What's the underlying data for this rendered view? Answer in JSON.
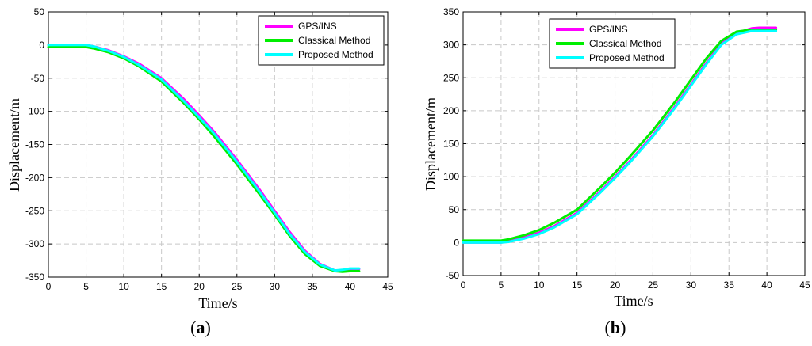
{
  "chart_data": [
    {
      "type": "line",
      "panel_label": "(a)",
      "panel_label_parts": [
        "(",
        "a",
        ")"
      ],
      "xlabel": "Time/s",
      "ylabel": "Displacement/m",
      "xlim": [
        0,
        45
      ],
      "ylim": [
        -350,
        50
      ],
      "xticks": [
        0,
        5,
        10,
        15,
        20,
        25,
        30,
        35,
        40,
        45
      ],
      "yticks": [
        -350,
        -300,
        -250,
        -200,
        -150,
        -100,
        -50,
        0,
        50
      ],
      "grid": true,
      "legend_position": "top-right",
      "series": [
        {
          "name": "GPS/INS",
          "color": "#ff00ff",
          "x": [
            0,
            4,
            5,
            6,
            8,
            10,
            12,
            15,
            18,
            20,
            22,
            25,
            28,
            30,
            32,
            34,
            36,
            38,
            39,
            40,
            41.2
          ],
          "y": [
            0,
            0,
            0,
            -2,
            -8,
            -17,
            -28,
            -50,
            -82,
            -106,
            -131,
            -173,
            -218,
            -250,
            -282,
            -310,
            -330,
            -340,
            -340,
            -338,
            -338
          ]
        },
        {
          "name": "Classical Method",
          "color": "#00ee00",
          "x": [
            0,
            4,
            5,
            6,
            8,
            10,
            12,
            15,
            18,
            20,
            22,
            25,
            28,
            30,
            32,
            34,
            36,
            38,
            39,
            40,
            41.2
          ],
          "y": [
            -3,
            -3,
            -3,
            -5,
            -11,
            -20,
            -32,
            -55,
            -88,
            -112,
            -138,
            -180,
            -225,
            -256,
            -288,
            -315,
            -333,
            -341,
            -342,
            -341,
            -341
          ]
        },
        {
          "name": "Proposed Method",
          "color": "#00ffff",
          "x": [
            0,
            4,
            5,
            6,
            8,
            10,
            12,
            15,
            18,
            20,
            22,
            25,
            28,
            30,
            32,
            34,
            36,
            38,
            39,
            40,
            41.2
          ],
          "y": [
            0,
            0,
            0,
            -2,
            -9,
            -18,
            -30,
            -52,
            -85,
            -109,
            -134,
            -176,
            -221,
            -253,
            -285,
            -312,
            -331,
            -340,
            -339,
            -337,
            -337
          ]
        }
      ]
    },
    {
      "type": "line",
      "panel_label": "(b)",
      "panel_label_parts": [
        "(",
        "b",
        ")"
      ],
      "xlabel": "Time/s",
      "ylabel": "Displacement/m",
      "xlim": [
        0,
        45
      ],
      "ylim": [
        -50,
        350
      ],
      "xticks": [
        0,
        5,
        10,
        15,
        20,
        25,
        30,
        35,
        40,
        45
      ],
      "yticks": [
        -50,
        0,
        50,
        100,
        150,
        200,
        250,
        300,
        350
      ],
      "grid": true,
      "legend_position": "top-center",
      "series": [
        {
          "name": "GPS/INS",
          "color": "#ff00ff",
          "x": [
            0,
            4,
            5,
            6,
            8,
            10,
            12,
            15,
            18,
            20,
            22,
            25,
            28,
            30,
            32,
            34,
            36,
            38,
            39,
            40,
            41.2
          ],
          "y": [
            0,
            0,
            0,
            2,
            8,
            15,
            25,
            45,
            77,
            100,
            124,
            163,
            208,
            240,
            272,
            302,
            318,
            325,
            326,
            326,
            326
          ]
        },
        {
          "name": "Classical Method",
          "color": "#00ee00",
          "x": [
            0,
            4,
            5,
            6,
            8,
            10,
            12,
            15,
            18,
            20,
            22,
            25,
            28,
            30,
            32,
            34,
            36,
            38,
            39,
            40,
            41.2
          ],
          "y": [
            3,
            3,
            3,
            5,
            11,
            19,
            30,
            50,
            83,
            106,
            131,
            170,
            215,
            247,
            279,
            306,
            320,
            323,
            323,
            323,
            323
          ]
        },
        {
          "name": "Proposed Method",
          "color": "#00ffff",
          "x": [
            0,
            4,
            5,
            6,
            8,
            10,
            12,
            15,
            18,
            20,
            22,
            25,
            28,
            30,
            32,
            34,
            36,
            38,
            39,
            40,
            41.2
          ],
          "y": [
            0,
            0,
            0,
            1,
            6,
            13,
            23,
            43,
            75,
            98,
            122,
            161,
            206,
            238,
            270,
            300,
            316,
            321,
            321,
            321,
            321
          ]
        }
      ]
    }
  ]
}
